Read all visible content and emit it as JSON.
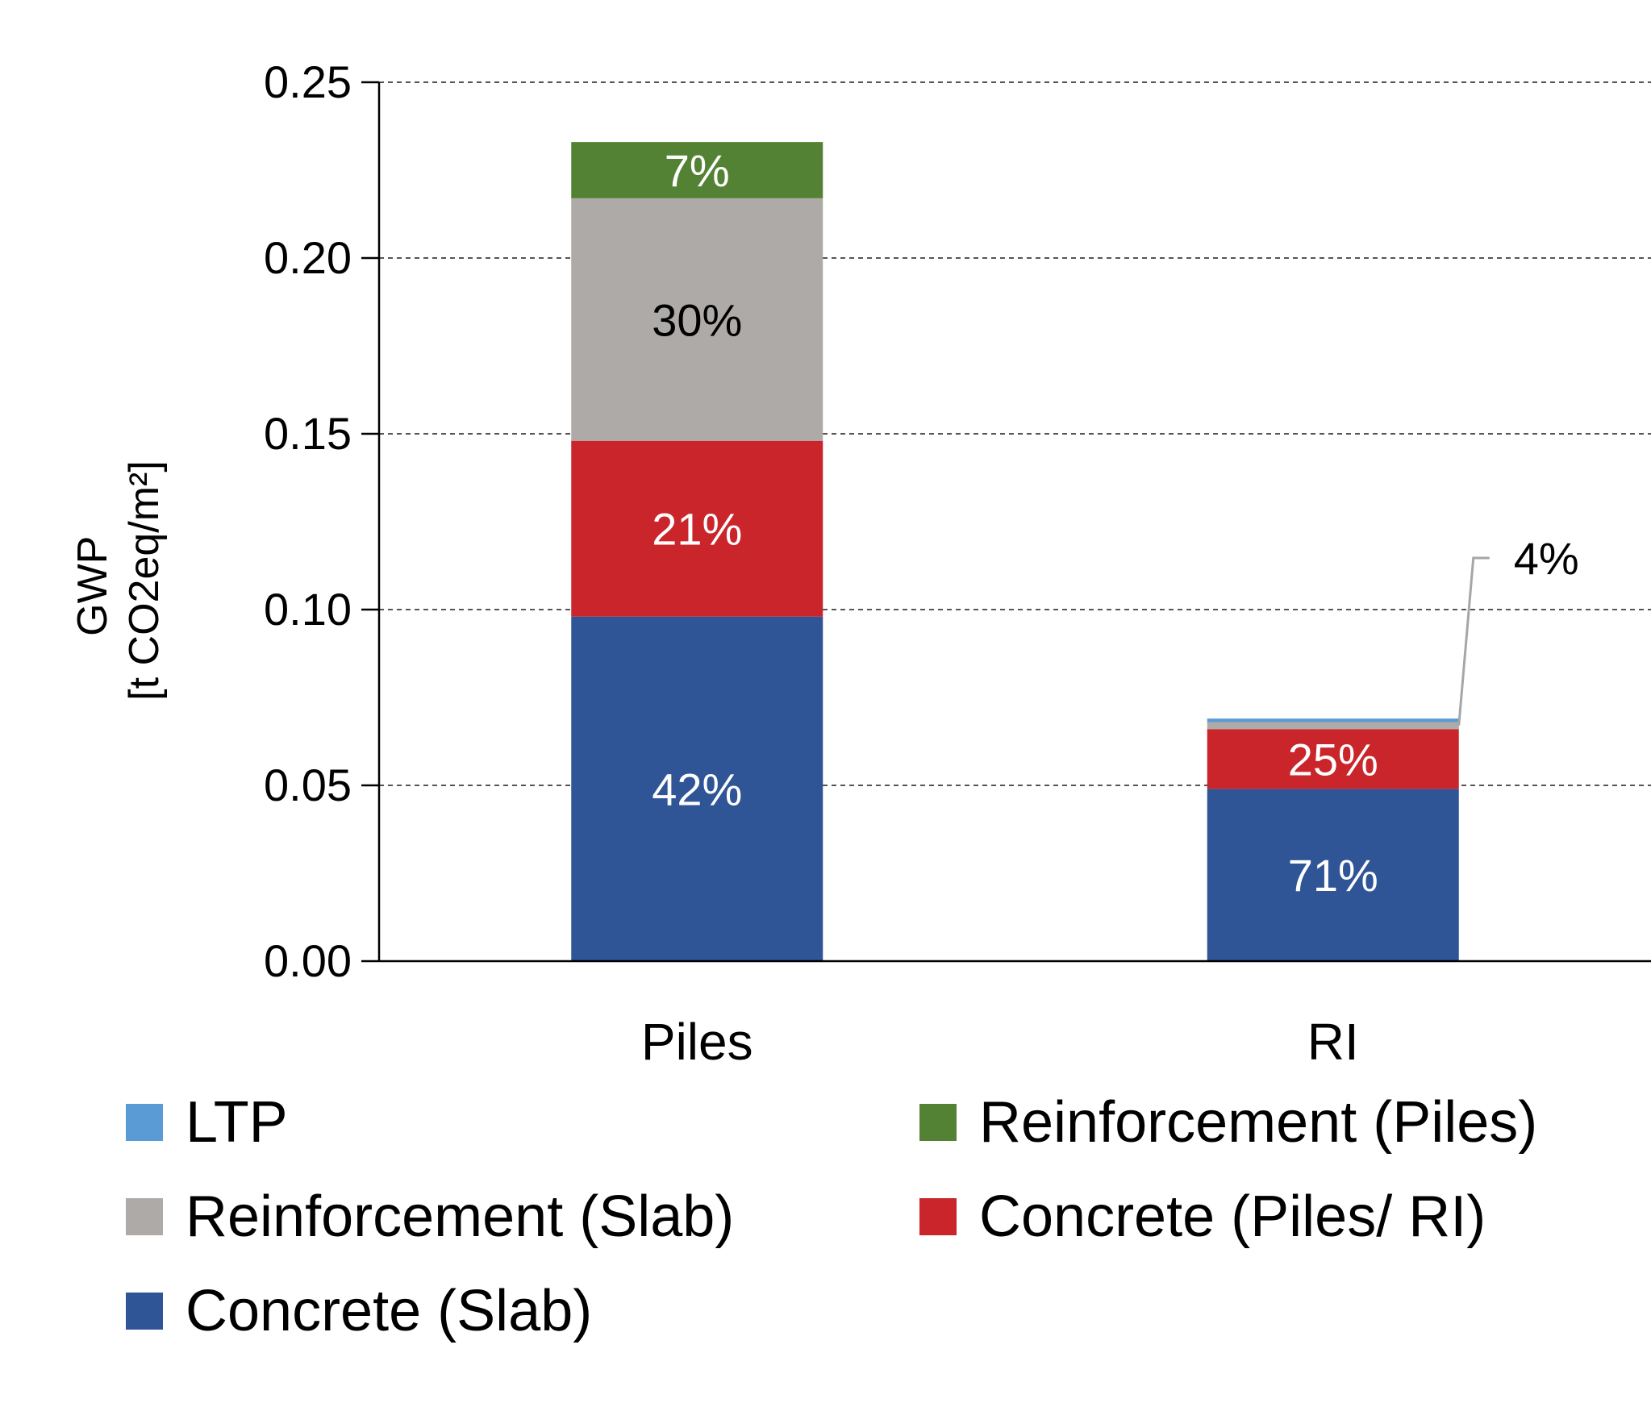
{
  "chart_data": {
    "type": "bar",
    "stacked": true,
    "title": "",
    "xlabel": "",
    "ylabel": [
      "GWP",
      "[t CO2eq/m²]"
    ],
    "ylim": [
      0,
      0.25
    ],
    "yticks": [
      "0.00",
      "0.05",
      "0.10",
      "0.15",
      "0.20",
      "0.25"
    ],
    "grid": "horizontal dashed",
    "legend_position": "bottom",
    "categories": [
      "Piles",
      "RI"
    ],
    "series": [
      {
        "name": "Concrete (Slab)",
        "color": "#2F5597",
        "values": [
          0.098,
          0.049
        ],
        "labels": [
          "42%",
          "71%"
        ],
        "label_color": "#ffffff"
      },
      {
        "name": "Concrete (Piles/ RI)",
        "color": "#C9252A",
        "values": [
          0.05,
          0.017
        ],
        "labels": [
          "21%",
          "25%"
        ],
        "label_color": "#ffffff"
      },
      {
        "name": "Reinforcement (Slab)",
        "color": "#AEAAA7",
        "values": [
          0.069,
          0.002
        ],
        "labels": [
          "30%",
          "4%"
        ],
        "label_color": "#000000"
      },
      {
        "name": "Reinforcement (Piles)",
        "color": "#548235",
        "values": [
          0.016,
          0
        ],
        "labels": [
          "7%",
          ""
        ],
        "label_color": "#ffffff"
      },
      {
        "name": "LTP",
        "color": "#5B9BD5",
        "values": [
          0,
          0.001
        ],
        "labels": [
          "",
          ""
        ],
        "label_color": "#ffffff"
      }
    ],
    "legend_order": [
      "LTP",
      "Reinforcement (Piles)",
      "Reinforcement (Slab)",
      "Concrete (Piles/ RI)",
      "Concrete (Slab)"
    ]
  }
}
